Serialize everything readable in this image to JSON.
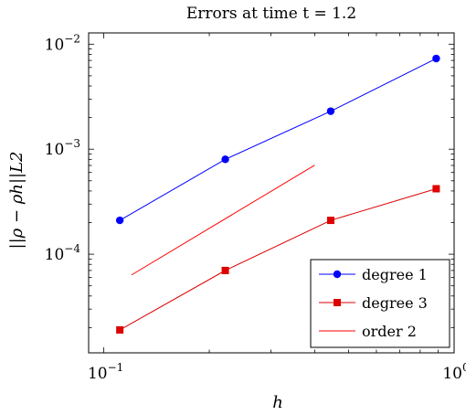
{
  "chart_data": {
    "type": "line",
    "title": "Errors at time t = 1.2",
    "xlabel": "h",
    "ylabel": "||ρ − ρh||L2",
    "xscale": "log",
    "yscale": "log",
    "xlim": [
      0.0905,
      1.0
    ],
    "ylim": [
      1.15e-05,
      0.0128
    ],
    "x_ticks": [
      {
        "value": 0.1,
        "base": "10",
        "exp": "−1"
      },
      {
        "value": 1,
        "base": "10",
        "exp": "0"
      }
    ],
    "y_ticks": [
      {
        "value": 0.0001,
        "base": "10",
        "exp": "−4"
      },
      {
        "value": 0.001,
        "base": "10",
        "exp": "−3"
      },
      {
        "value": 0.01,
        "base": "10",
        "exp": "−2"
      }
    ],
    "grid": false,
    "legend_position": "bottom-right",
    "series": [
      {
        "name": "degree 1",
        "color": "#0000ff",
        "marker": "circle",
        "x": [
          0.1111,
          0.2222,
          0.4444,
          0.8889
        ],
        "y": [
          0.00021,
          0.0008,
          0.0023,
          0.0073
        ]
      },
      {
        "name": "degree 3",
        "color": "#dd0000",
        "marker": "square",
        "x": [
          0.1111,
          0.2222,
          0.4444,
          0.8889
        ],
        "y": [
          1.9e-05,
          7e-05,
          0.00021,
          0.00042
        ]
      },
      {
        "name": "order 2",
        "color": "#ff0000",
        "marker": "none",
        "x": [
          0.12,
          0.4
        ],
        "y": [
          6.35e-05,
          0.000705
        ]
      }
    ]
  }
}
